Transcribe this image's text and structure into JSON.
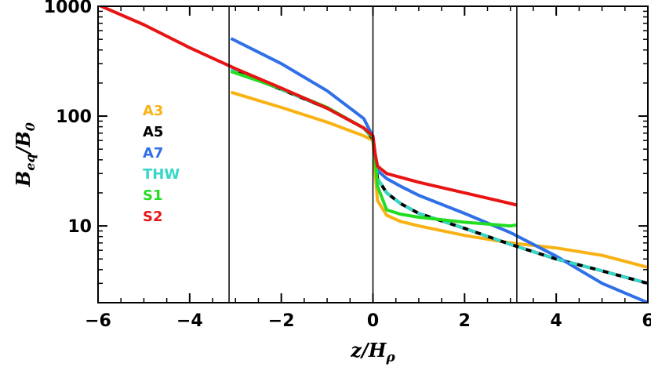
{
  "chart_data": {
    "type": "line",
    "title": "",
    "xlabel": "z/Hρ",
    "ylabel": "Beq/B0",
    "xlabel_parts": {
      "main": "z/H",
      "sub": "ρ"
    },
    "ylabel_parts": {
      "main": "B",
      "sub": "eq",
      "sep": "/B",
      "sub2": "0"
    },
    "xlim": [
      -6,
      6
    ],
    "ylim": [
      2,
      1000
    ],
    "yscale": "log",
    "xticks": [
      -6,
      -4,
      -2,
      0,
      2,
      4,
      6
    ],
    "xtick_labels": [
      "−6",
      "−4",
      "−2",
      "0",
      "2",
      "4",
      "6"
    ],
    "yticks": [
      10,
      100,
      1000
    ],
    "ytick_labels": [
      "10",
      "100",
      "1000"
    ],
    "vlines": [
      -3.14,
      0,
      3.14
    ],
    "legend_position": "left",
    "series": [
      {
        "name": "A3",
        "color": "#f9b214",
        "dash": "",
        "points": [
          [
            -3.1,
            165
          ],
          [
            -2,
            120
          ],
          [
            -1,
            88
          ],
          [
            -0.2,
            66
          ],
          [
            0,
            60
          ],
          [
            0.05,
            30
          ],
          [
            0.1,
            17
          ],
          [
            0.3,
            12.5
          ],
          [
            0.6,
            11
          ],
          [
            1,
            10
          ],
          [
            2,
            8.2
          ],
          [
            3,
            7
          ],
          [
            4,
            6.3
          ],
          [
            5,
            5.4
          ],
          [
            6,
            4.2
          ]
        ]
      },
      {
        "name": "A5",
        "color": "#000000",
        "dash": "",
        "points": [
          [
            -3.1,
            265
          ],
          [
            -2,
            175
          ],
          [
            -1,
            118
          ],
          [
            -0.2,
            78
          ],
          [
            0,
            62
          ],
          [
            0.05,
            40
          ],
          [
            0.1,
            27
          ],
          [
            0.3,
            20
          ],
          [
            0.6,
            16
          ],
          [
            1,
            13
          ],
          [
            2,
            9.5
          ],
          [
            3,
            6.8
          ],
          [
            4,
            5
          ],
          [
            5,
            3.9
          ],
          [
            6,
            3
          ]
        ]
      },
      {
        "name": "A7",
        "color": "#2f6fe8",
        "dash": "",
        "points": [
          [
            -3.1,
            510
          ],
          [
            -2,
            300
          ],
          [
            -1,
            170
          ],
          [
            -0.2,
            95
          ],
          [
            0,
            65
          ],
          [
            0.05,
            42
          ],
          [
            0.1,
            32
          ],
          [
            0.3,
            27
          ],
          [
            0.6,
            23
          ],
          [
            1,
            19
          ],
          [
            2,
            13
          ],
          [
            3,
            8.7
          ],
          [
            4,
            5.3
          ],
          [
            5,
            3
          ],
          [
            6,
            2
          ]
        ]
      },
      {
        "name": "THW",
        "color": "#35d8c8",
        "dash": "10,7",
        "points": [
          [
            -3.1,
            265
          ],
          [
            -2,
            175
          ],
          [
            -1,
            118
          ],
          [
            -0.2,
            78
          ],
          [
            0,
            62
          ],
          [
            0.05,
            40
          ],
          [
            0.1,
            27
          ],
          [
            0.3,
            20
          ],
          [
            0.6,
            16
          ],
          [
            1,
            13
          ],
          [
            2,
            9.5
          ],
          [
            3,
            6.8
          ],
          [
            4,
            5
          ],
          [
            5,
            3.9
          ],
          [
            6,
            3
          ]
        ]
      },
      {
        "name": "S1",
        "color": "#22dd22",
        "dash": "",
        "points": [
          [
            -3.1,
            255
          ],
          [
            -2,
            178
          ],
          [
            -1,
            120
          ],
          [
            -0.2,
            78
          ],
          [
            0,
            64
          ],
          [
            0.05,
            40
          ],
          [
            0.1,
            23
          ],
          [
            0.3,
            14
          ],
          [
            0.6,
            12.8
          ],
          [
            1,
            12
          ],
          [
            2,
            10.8
          ],
          [
            3,
            10
          ],
          [
            3.14,
            10.2
          ]
        ]
      },
      {
        "name": "S2",
        "color": "#e81313",
        "dash": "",
        "points": [
          [
            -6,
            1030
          ],
          [
            -5,
            680
          ],
          [
            -4,
            420
          ],
          [
            -3,
            270
          ],
          [
            -2,
            180
          ],
          [
            -1,
            118
          ],
          [
            -0.2,
            78
          ],
          [
            0,
            66
          ],
          [
            0.05,
            45
          ],
          [
            0.1,
            35
          ],
          [
            0.3,
            30
          ],
          [
            1,
            25
          ],
          [
            2,
            20
          ],
          [
            3,
            16
          ],
          [
            3.14,
            15.5
          ]
        ]
      }
    ]
  }
}
